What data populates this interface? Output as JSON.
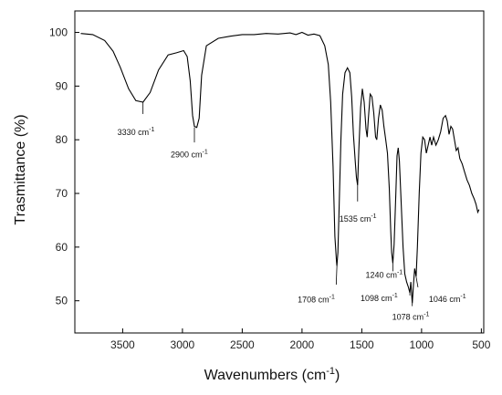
{
  "chart_data": {
    "type": "line",
    "title": "",
    "xlabel": "Wavenumbers (cm",
    "xlabel_sup": "-1",
    "xlabel_tail": ")",
    "ylabel": "Trasmittance (%)",
    "xlim": [
      3900,
      480
    ],
    "ylim": [
      44,
      104
    ],
    "x_ticks": [
      3500,
      3000,
      2500,
      2000,
      1500,
      1000,
      500
    ],
    "y_ticks": [
      50,
      60,
      70,
      80,
      90,
      100
    ],
    "grid": false,
    "series": [
      {
        "color": "#000000",
        "points": [
          [
            3850,
            99.8
          ],
          [
            3750,
            99.6
          ],
          [
            3650,
            98.5
          ],
          [
            3580,
            96.5
          ],
          [
            3520,
            93.5
          ],
          [
            3450,
            89.5
          ],
          [
            3390,
            87.3
          ],
          [
            3330,
            87.0
          ],
          [
            3270,
            88.8
          ],
          [
            3200,
            93.0
          ],
          [
            3120,
            95.8
          ],
          [
            3050,
            96.2
          ],
          [
            2990,
            96.6
          ],
          [
            2960,
            95.5
          ],
          [
            2935,
            91.0
          ],
          [
            2915,
            84.5
          ],
          [
            2900,
            82.5
          ],
          [
            2880,
            82.3
          ],
          [
            2860,
            84.0
          ],
          [
            2840,
            92.0
          ],
          [
            2800,
            97.5
          ],
          [
            2700,
            98.9
          ],
          [
            2600,
            99.3
          ],
          [
            2500,
            99.6
          ],
          [
            2400,
            99.6
          ],
          [
            2300,
            99.8
          ],
          [
            2200,
            99.7
          ],
          [
            2100,
            99.9
          ],
          [
            2050,
            99.6
          ],
          [
            2000,
            100.0
          ],
          [
            1950,
            99.5
          ],
          [
            1900,
            99.7
          ],
          [
            1850,
            99.4
          ],
          [
            1810,
            97.5
          ],
          [
            1780,
            94.0
          ],
          [
            1760,
            87.0
          ],
          [
            1740,
            75.0
          ],
          [
            1725,
            62.0
          ],
          [
            1712,
            57.5
          ],
          [
            1708,
            56.5
          ],
          [
            1700,
            59.0
          ],
          [
            1690,
            67.0
          ],
          [
            1675,
            80.0
          ],
          [
            1660,
            88.5
          ],
          [
            1640,
            92.5
          ],
          [
            1620,
            93.4
          ],
          [
            1600,
            92.5
          ],
          [
            1585,
            88.0
          ],
          [
            1570,
            81.0
          ],
          [
            1555,
            76.0
          ],
          [
            1545,
            73.0
          ],
          [
            1535,
            71.5
          ],
          [
            1525,
            78.0
          ],
          [
            1510,
            86.0
          ],
          [
            1495,
            89.5
          ],
          [
            1480,
            87.0
          ],
          [
            1465,
            82.0
          ],
          [
            1455,
            80.5
          ],
          [
            1445,
            84.0
          ],
          [
            1430,
            88.5
          ],
          [
            1415,
            88.0
          ],
          [
            1400,
            85.0
          ],
          [
            1385,
            80.5
          ],
          [
            1375,
            80.0
          ],
          [
            1360,
            84.0
          ],
          [
            1345,
            86.5
          ],
          [
            1330,
            85.5
          ],
          [
            1315,
            82.5
          ],
          [
            1300,
            80.0
          ],
          [
            1285,
            77.5
          ],
          [
            1270,
            71.0
          ],
          [
            1258,
            63.0
          ],
          [
            1250,
            59.0
          ],
          [
            1240,
            57.0
          ],
          [
            1230,
            60.5
          ],
          [
            1215,
            70.0
          ],
          [
            1205,
            77.0
          ],
          [
            1195,
            78.5
          ],
          [
            1185,
            76.0
          ],
          [
            1170,
            68.0
          ],
          [
            1155,
            60.0
          ],
          [
            1140,
            55.0
          ],
          [
            1125,
            53.5
          ],
          [
            1110,
            52.5
          ],
          [
            1098,
            51.5
          ],
          [
            1090,
            53.5
          ],
          [
            1078,
            49.5
          ],
          [
            1068,
            53.0
          ],
          [
            1058,
            56.0
          ],
          [
            1046,
            54.5
          ],
          [
            1035,
            60.0
          ],
          [
            1020,
            70.0
          ],
          [
            1005,
            77.5
          ],
          [
            990,
            80.5
          ],
          [
            975,
            80.0
          ],
          [
            960,
            77.5
          ],
          [
            945,
            79.0
          ],
          [
            930,
            80.5
          ],
          [
            915,
            79.0
          ],
          [
            900,
            80.5
          ],
          [
            880,
            79.0
          ],
          [
            860,
            80.0
          ],
          [
            840,
            81.5
          ],
          [
            820,
            84.0
          ],
          [
            800,
            84.5
          ],
          [
            785,
            83.5
          ],
          [
            770,
            81.0
          ],
          [
            755,
            82.5
          ],
          [
            740,
            82.0
          ],
          [
            725,
            80.0
          ],
          [
            710,
            78.0
          ],
          [
            695,
            78.5
          ],
          [
            680,
            76.5
          ],
          [
            660,
            75.5
          ],
          [
            640,
            74.0
          ],
          [
            620,
            72.5
          ],
          [
            600,
            71.5
          ],
          [
            580,
            70.0
          ],
          [
            560,
            69.0
          ],
          [
            545,
            68.0
          ],
          [
            530,
            66.5
          ],
          [
            520,
            67.0
          ]
        ]
      }
    ],
    "annotations": [
      {
        "text": "3330 cm",
        "sup": "-1",
        "x": 3330,
        "y": 87.0,
        "dx": -28,
        "dy": 36,
        "line_to": [
          3330,
          84.8
        ]
      },
      {
        "text": "2900 cm",
        "sup": "-1",
        "x": 2900,
        "y": 82.3,
        "dx": -26,
        "dy": 33,
        "line_to": [
          2900,
          79.5
        ]
      },
      {
        "text": "1535 cm",
        "sup": "-1",
        "x": 1535,
        "y": 71.5,
        "dx": -20,
        "dy": 40,
        "line_to": [
          1535,
          68.5
        ]
      },
      {
        "text": "1708 cm",
        "sup": "-1",
        "x": 1708,
        "y": 56.5,
        "dx": -43,
        "dy": 40,
        "line_to": [
          1714,
          53.0
        ]
      },
      {
        "text": "1240 cm",
        "sup": "-1",
        "x": 1240,
        "y": 57.0,
        "dx": -30,
        "dy": 16,
        "line_to": [
          1240,
          55.5
        ]
      },
      {
        "text": "1098 cm",
        "sup": "-1",
        "x": 1098,
        "y": 51.5,
        "dx": -54,
        "dy": 9,
        "line_to": [
          1098,
          51.0
        ]
      },
      {
        "text": "1078 cm",
        "sup": "-1",
        "x": 1078,
        "y": 49.5,
        "dx": -22,
        "dy": 18,
        "line_to": [
          1078,
          49.0
        ]
      },
      {
        "text": "1046 cm",
        "sup": "-1",
        "x": 1046,
        "y": 54.5,
        "dx": 14,
        "dy": 28,
        "line_to": [
          1030,
          52.5
        ]
      }
    ]
  }
}
